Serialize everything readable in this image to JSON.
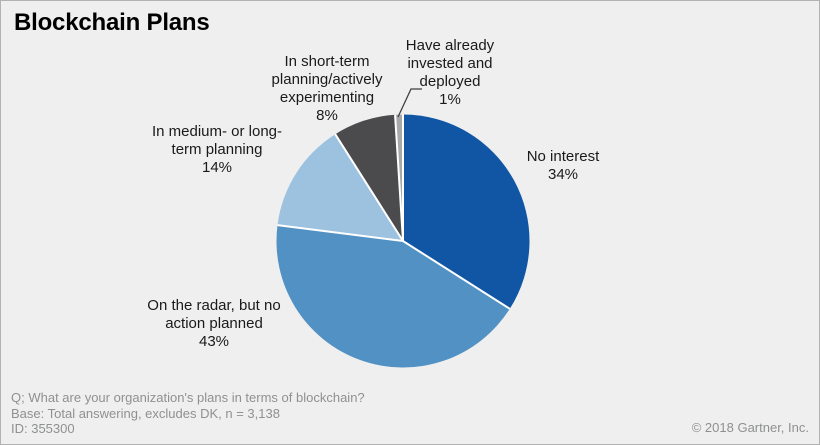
{
  "title": "Blockchain Plans",
  "chart_data": {
    "type": "pie",
    "title": "Blockchain Plans",
    "start_angle_deg_from_top": 0,
    "direction": "clockwise",
    "legend_position": "none",
    "labels_on_chart": true,
    "slices": [
      {
        "id": "no-interest",
        "label": "No interest",
        "value": 34,
        "pct_label": "34%",
        "color": "#1156a4"
      },
      {
        "id": "on-radar",
        "label": "On the radar, but no action planned",
        "value": 43,
        "pct_label": "43%",
        "color": "#5291c3"
      },
      {
        "id": "medium-long",
        "label": "In medium- or long-term planning",
        "value": 14,
        "pct_label": "14%",
        "color": "#9cc2e0"
      },
      {
        "id": "short-term",
        "label": "In short-term planning/actively experimenting",
        "value": 8,
        "pct_label": "8%",
        "color": "#4b4b4d"
      },
      {
        "id": "invested",
        "label": "Have already invested and deployed",
        "value": 1,
        "pct_label": "1%",
        "color": "#a7a9ab"
      }
    ]
  },
  "labels": {
    "short_term": "In short-term\nplanning/actively\nexperimenting\n8%",
    "invested": "Have already\ninvested and\ndeployed\n1%",
    "no_interest": "No interest\n34%",
    "medium_long": "In medium- or long-\nterm planning\n14%",
    "radar": "On the radar, but no\naction planned\n43%"
  },
  "footer": {
    "question": "Q; What are your organization's plans in terms of blockchain?",
    "base": "Base: Total answering, excludes DK, n = 3,138",
    "id": "ID: 355300",
    "copyright": "© 2018 Gartner, Inc."
  },
  "colors": {
    "background": "#efefef",
    "border": "#b2b2b2",
    "separator": "#ffffff",
    "leader_line": "#3f3f3f",
    "footer_text": "#8f9091",
    "label_text": "#1a1a1a"
  }
}
